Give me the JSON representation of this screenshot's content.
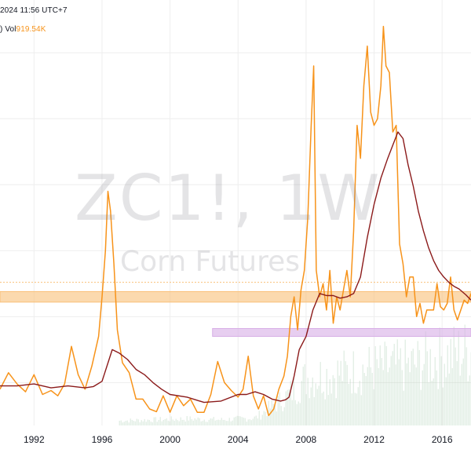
{
  "header": {
    "datetime": "2024 11:56 UTC+7",
    "paren": ")",
    "vol_label": "Vol",
    "vol_value": "919.54",
    "vol_unit": "K"
  },
  "watermark": {
    "symbol": "ZC1!, 1W",
    "description": "Corn Futures"
  },
  "colors": {
    "price": "#f7931a",
    "moving_average": "#8b1a1a",
    "orange_zone": "#f9c078",
    "purple_zone": "#d7aee6",
    "volume": "#a3c9a8",
    "grid": "#eeeeee"
  },
  "chart_data": {
    "type": "line",
    "x_axis": {
      "ticks": [
        "1992",
        "1996",
        "2000",
        "2004",
        "2008",
        "2012",
        "2016"
      ],
      "range": [
        1990.0,
        2017.7
      ]
    },
    "y_range": [
      185,
      830
    ],
    "grid": true,
    "series": [
      {
        "style": "price",
        "x": [
          1990.0,
          1990.5,
          1991.0,
          1991.5,
          1992.0,
          1992.5,
          1993.0,
          1993.4,
          1993.8,
          1994.2,
          1994.6,
          1995.0,
          1995.4,
          1995.8,
          1996.0,
          1996.2,
          1996.35,
          1996.5,
          1996.7,
          1996.9,
          1997.2,
          1997.6,
          1998.0,
          1998.4,
          1998.8,
          1999.2,
          1999.6,
          2000.0,
          2000.4,
          2000.8,
          2001.2,
          2001.6,
          2002.0,
          2002.4,
          2002.8,
          2003.2,
          2003.6,
          2004.0,
          2004.3,
          2004.6,
          2004.9,
          2005.2,
          2005.5,
          2005.8,
          2006.1,
          2006.4,
          2006.7,
          2006.9,
          2007.1,
          2007.3,
          2007.5,
          2007.7,
          2007.9,
          2008.1,
          2008.3,
          2008.45,
          2008.6,
          2008.8,
          2009.0,
          2009.2,
          2009.4,
          2009.6,
          2009.8,
          2010.0,
          2010.2,
          2010.4,
          2010.6,
          2010.8,
          2011.0,
          2011.2,
          2011.4,
          2011.6,
          2011.8,
          2012.0,
          2012.2,
          2012.4,
          2012.55,
          2012.7,
          2012.9,
          2013.1,
          2013.3,
          2013.5,
          2013.7,
          2013.9,
          2014.1,
          2014.3,
          2014.5,
          2014.7,
          2014.9,
          2015.1,
          2015.3,
          2015.5,
          2015.7,
          2015.9,
          2016.1,
          2016.3,
          2016.5,
          2016.7,
          2016.9,
          2017.1,
          2017.3,
          2017.5,
          2017.7
        ],
        "values": [
          240,
          265,
          248,
          236,
          262,
          232,
          238,
          230,
          248,
          305,
          262,
          240,
          275,
          320,
          380,
          450,
          540,
          510,
          430,
          330,
          280,
          265,
          225,
          225,
          210,
          206,
          230,
          205,
          230,
          215,
          225,
          205,
          205,
          232,
          282,
          250,
          238,
          228,
          240,
          290,
          230,
          210,
          230,
          200,
          210,
          240,
          260,
          290,
          350,
          380,
          330,
          390,
          420,
          500,
          640,
          730,
          420,
          380,
          400,
          360,
          420,
          340,
          380,
          360,
          390,
          420,
          380,
          480,
          640,
          590,
          700,
          760,
          660,
          640,
          650,
          700,
          790,
          730,
          720,
          630,
          640,
          460,
          430,
          380,
          410,
          410,
          350,
          370,
          340,
          360,
          360,
          360,
          400,
          365,
          360,
          370,
          410,
          360,
          345,
          360,
          375,
          370,
          385
        ]
      },
      {
        "style": "moving_average",
        "x": [
          1990.0,
          1991.0,
          1992.0,
          1993.0,
          1994.0,
          1995.0,
          1995.5,
          1996.0,
          1996.6,
          1997.0,
          1997.5,
          1998.0,
          1998.5,
          1999.0,
          1999.5,
          2000.0,
          2001.0,
          2002.0,
          2003.0,
          2004.0,
          2004.5,
          2005.0,
          2005.5,
          2006.0,
          2006.5,
          2006.8,
          2007.0,
          2007.3,
          2007.6,
          2008.0,
          2008.4,
          2008.8,
          2009.2,
          2009.6,
          2010.0,
          2010.4,
          2010.8,
          2011.2,
          2011.6,
          2012.0,
          2012.4,
          2012.8,
          2013.1,
          2013.4,
          2013.7,
          2014.0,
          2014.3,
          2014.6,
          2014.9,
          2015.2,
          2015.5,
          2015.8,
          2016.1,
          2016.4,
          2016.7,
          2017.0,
          2017.4,
          2017.7
        ],
        "values": [
          245,
          245,
          248,
          242,
          245,
          242,
          244,
          252,
          300,
          295,
          285,
          270,
          262,
          250,
          240,
          232,
          228,
          220,
          222,
          232,
          232,
          236,
          232,
          225,
          222,
          224,
          228,
          260,
          300,
          320,
          360,
          385,
          382,
          382,
          378,
          380,
          385,
          410,
          470,
          520,
          560,
          590,
          610,
          630,
          620,
          580,
          548,
          510,
          480,
          455,
          435,
          420,
          410,
          402,
          396,
          392,
          383,
          375
        ]
      }
    ],
    "zones": [
      {
        "color": "orange",
        "y_range": [
          372,
          388
        ],
        "x_start": 1990.0
      },
      {
        "color": "purple",
        "y_range": [
          320,
          332
        ],
        "x_start": 2002.5
      }
    ],
    "reference_line": {
      "y": 402,
      "style": "dotted"
    },
    "volume": {
      "x_start": 1997.0,
      "x": [
        1997,
        1999,
        2001,
        2003,
        2005,
        2006.8,
        2008,
        2010,
        2012,
        2014,
        2016,
        2017.7
      ],
      "heights": [
        0.05,
        0.06,
        0.07,
        0.06,
        0.08,
        0.3,
        0.5,
        0.55,
        0.6,
        0.62,
        0.72,
        0.78
      ]
    }
  }
}
